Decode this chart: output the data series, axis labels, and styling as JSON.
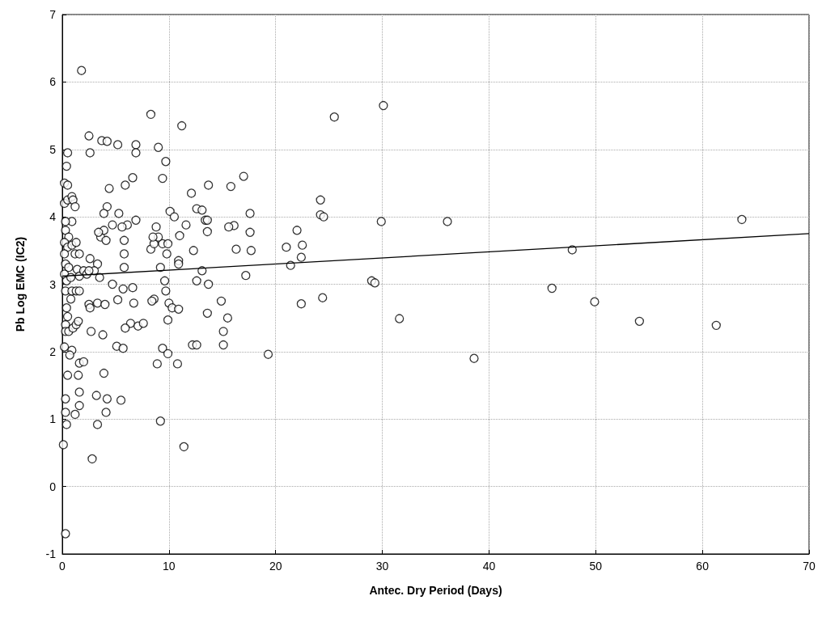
{
  "chart_data": {
    "type": "scatter",
    "xlabel": "Antec. Dry Period (Days)",
    "ylabel": "Pb Log EMC (IC2)",
    "xlim": [
      0,
      70
    ],
    "xticks": [
      0,
      10,
      20,
      30,
      40,
      50,
      60,
      70
    ],
    "ylim": [
      -1,
      7
    ],
    "yticks": [
      -1,
      0,
      1,
      2,
      3,
      4,
      5,
      6,
      7
    ],
    "grid": true,
    "series": [
      {
        "marker": "circle",
        "color": "#000000",
        "x": [
          1.8,
          2.5,
          2.6,
          3.7,
          4.2,
          5.2,
          6.9,
          6.9,
          8.3,
          9.0,
          9.7,
          9.4,
          11.2,
          6.6,
          5.9,
          4.4,
          0.5,
          0.4,
          0.2,
          0.5,
          0.2,
          0.5,
          0.9,
          1.0,
          1.2,
          0.9,
          0.3,
          0.3,
          0.6,
          0.2,
          0.5,
          0.9,
          1.3,
          1.2,
          1.6,
          0.2,
          0.3,
          0.6,
          1.4,
          0.2,
          0.4,
          0.8,
          1.6,
          2.0,
          2.3,
          2.6,
          3.3,
          3.0,
          3.5,
          2.5,
          0.3,
          0.9,
          1.3,
          1.6,
          0.4,
          0.5,
          0.3,
          0.3,
          0.6,
          1.0,
          1.3,
          1.5,
          0.8,
          2.5,
          2.6,
          3.3,
          2.7,
          3.8,
          4.0,
          4.7,
          5.7,
          6.6,
          6.7,
          6.4,
          5.9,
          7.1,
          7.6,
          5.2,
          3.6,
          3.9,
          4.2,
          3.9,
          4.1,
          3.4,
          4.7,
          5.3,
          6.1,
          6.9,
          5.6,
          5.8,
          5.8,
          5.8,
          8.3,
          8.6,
          8.8,
          9.4,
          9.0,
          8.5,
          9.2,
          9.9,
          9.8,
          10.1,
          10.5,
          11.0,
          11.6,
          12.1,
          12.6,
          13.1,
          13.4,
          13.6,
          13.7,
          10.9,
          10.9,
          12.3,
          13.6,
          13.1,
          12.6,
          13.7,
          9.6,
          9.7,
          10.0,
          10.3,
          8.6,
          8.4,
          9.9,
          10.9,
          9.4,
          9.9,
          8.9,
          10.8,
          12.2,
          12.6,
          13.6,
          0.2,
          0.9,
          0.7,
          1.6,
          2.0,
          1.5,
          0.5,
          0.3,
          3.2,
          4.2,
          1.6,
          1.6,
          1.2,
          0.3,
          0.4,
          4.1,
          5.5,
          3.3,
          3.9,
          5.1,
          5.7,
          2.8,
          9.2,
          11.4,
          0.1,
          0.3,
          14.9,
          15.5,
          15.1,
          15.1,
          15.8,
          16.1,
          15.6,
          16.3,
          17.0,
          17.6,
          17.6,
          17.7,
          17.2,
          19.3,
          21.0,
          21.4,
          22.0,
          22.4,
          22.5,
          22.4,
          24.2,
          24.2,
          24.5,
          24.4,
          25.5,
          29.0,
          29.3,
          29.9,
          30.1,
          31.6,
          36.1,
          38.6,
          45.9,
          47.8,
          49.9,
          54.1,
          61.3,
          63.7
        ],
        "values": [
          6.17,
          5.2,
          4.95,
          5.13,
          5.12,
          5.07,
          5.07,
          4.95,
          5.52,
          5.03,
          4.82,
          4.57,
          5.35,
          4.58,
          4.47,
          4.42,
          4.95,
          4.75,
          4.5,
          4.47,
          4.2,
          4.25,
          4.3,
          4.25,
          4.15,
          3.93,
          3.93,
          3.8,
          3.7,
          3.62,
          3.55,
          3.58,
          3.62,
          3.45,
          3.45,
          3.45,
          3.3,
          3.25,
          3.22,
          3.15,
          3.05,
          3.1,
          3.12,
          3.2,
          3.15,
          3.38,
          3.3,
          3.2,
          3.1,
          3.2,
          2.9,
          2.9,
          2.9,
          2.9,
          2.65,
          2.52,
          2.4,
          2.3,
          2.3,
          2.35,
          2.4,
          2.45,
          2.78,
          2.7,
          2.65,
          2.72,
          2.3,
          2.25,
          2.7,
          3.0,
          2.93,
          2.95,
          2.72,
          2.42,
          2.35,
          2.38,
          2.42,
          2.77,
          3.7,
          3.8,
          4.15,
          4.05,
          3.65,
          3.77,
          3.88,
          4.05,
          3.88,
          3.95,
          3.85,
          3.65,
          3.45,
          3.25,
          3.52,
          3.6,
          3.85,
          3.6,
          3.7,
          3.7,
          3.25,
          3.6,
          3.45,
          4.08,
          4.0,
          3.72,
          3.88,
          4.35,
          4.12,
          4.1,
          3.95,
          3.95,
          4.47,
          3.35,
          3.3,
          3.5,
          3.78,
          3.2,
          3.05,
          3.0,
          3.05,
          2.9,
          2.72,
          2.65,
          2.78,
          2.75,
          2.47,
          2.63,
          2.05,
          1.97,
          1.82,
          1.82,
          2.1,
          2.1,
          2.57,
          2.07,
          2.02,
          1.95,
          1.83,
          1.85,
          1.65,
          1.65,
          1.3,
          1.35,
          1.3,
          1.4,
          1.2,
          1.07,
          1.1,
          0.92,
          1.1,
          1.28,
          0.92,
          1.68,
          2.08,
          2.05,
          0.41,
          0.97,
          0.59,
          0.62,
          -0.7,
          2.75,
          2.5,
          2.3,
          2.1,
          4.45,
          3.87,
          3.85,
          3.52,
          4.6,
          4.05,
          3.77,
          3.5,
          3.13,
          1.96,
          3.55,
          3.28,
          3.8,
          3.4,
          3.58,
          2.71,
          4.25,
          4.03,
          4.0,
          2.8,
          5.48,
          3.05,
          3.02,
          3.93,
          5.65,
          2.49,
          3.93,
          1.9,
          2.94,
          3.51,
          2.74,
          2.45,
          2.39,
          3.96
        ]
      },
      {
        "type": "line",
        "marker": "none",
        "line_style": "solid",
        "color": "#000000",
        "x": [
          0,
          70
        ],
        "values": [
          3.12,
          3.75
        ]
      }
    ]
  }
}
